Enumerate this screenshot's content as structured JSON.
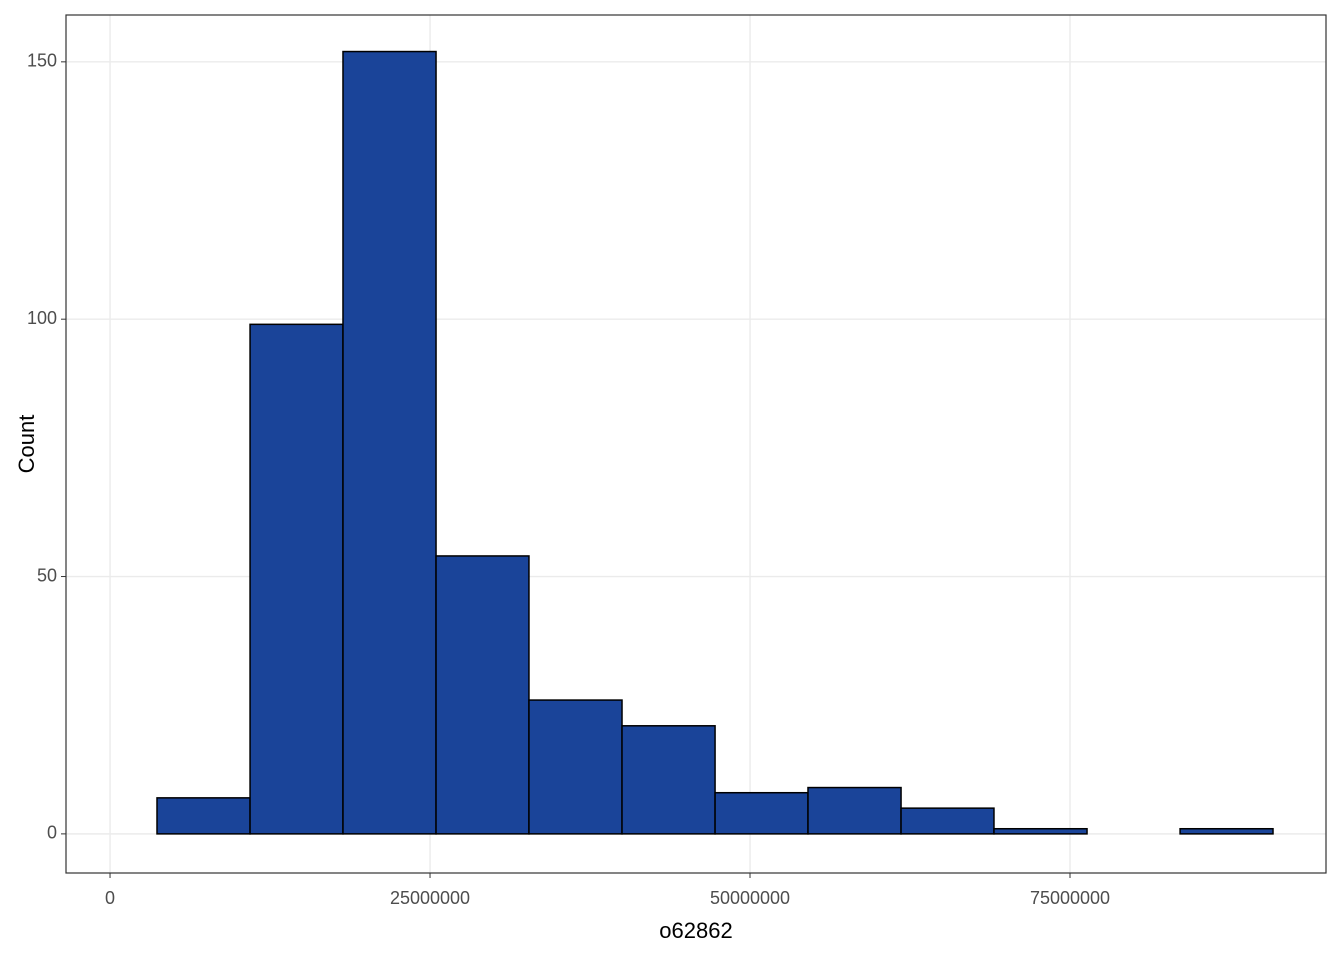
{
  "chart_data": {
    "type": "histogram",
    "x_label": "o62862",
    "y_label": "Count",
    "bins": [
      3670000,
      10940000,
      18200000,
      25470000,
      32730000,
      40000000,
      47270000,
      54530000,
      61800000,
      69060000,
      76330000,
      83600000,
      90860000
    ],
    "values": [
      7,
      99,
      152,
      54,
      26,
      21,
      8,
      9,
      5,
      1,
      0,
      1
    ],
    "color": "#1a4499",
    "edge_color": "#000000",
    "xlim": [
      -3440000,
      95000000
    ],
    "xticks": [
      0,
      25000000,
      50000000,
      75000000
    ],
    "ylim": [
      -7.6,
      159.1
    ],
    "yticks": [
      0,
      50,
      100,
      150
    ],
    "grid": true
  }
}
